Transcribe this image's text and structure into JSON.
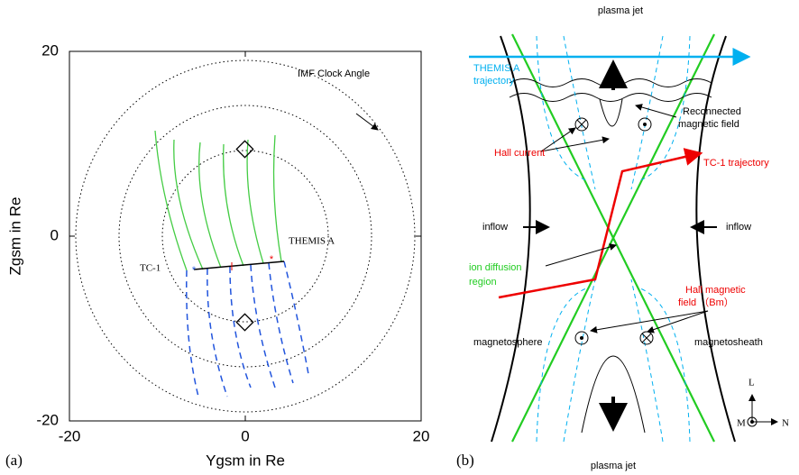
{
  "panel_a": {
    "label": "(a)",
    "xlabel": "Ygsm in Re",
    "ylabel": "Zgsm in Re",
    "xlim": [
      -20,
      20
    ],
    "ylim": [
      -20,
      20
    ],
    "xticks": [
      -20,
      0,
      20
    ],
    "yticks": [
      -20,
      0,
      20
    ],
    "annotations": {
      "clock": "IMF Clock Angle",
      "themis": "THEMIS A",
      "tc1": "TC-1"
    }
  },
  "panel_b": {
    "label": "(b)",
    "texts": {
      "jet_top": "plasma jet",
      "themis1": "THEMIS A",
      "themis2": "trajectory",
      "recon1": "Reconnected",
      "recon2": "magnetic field",
      "hall_current": "Hall current",
      "tc1": "TC-1  trajectory",
      "inflow_left": "inflow",
      "inflow_right": "inflow",
      "idr1": "ion diffusion",
      "idr2": "region",
      "hallb1": "Hall magnetic",
      "hallb2": "field （Bm）",
      "msphere": "magnetosphere",
      "msheath": "magnetosheath",
      "L": "L",
      "M": "M",
      "N": "N",
      "jet_bottom": "plasma jet"
    }
  }
}
